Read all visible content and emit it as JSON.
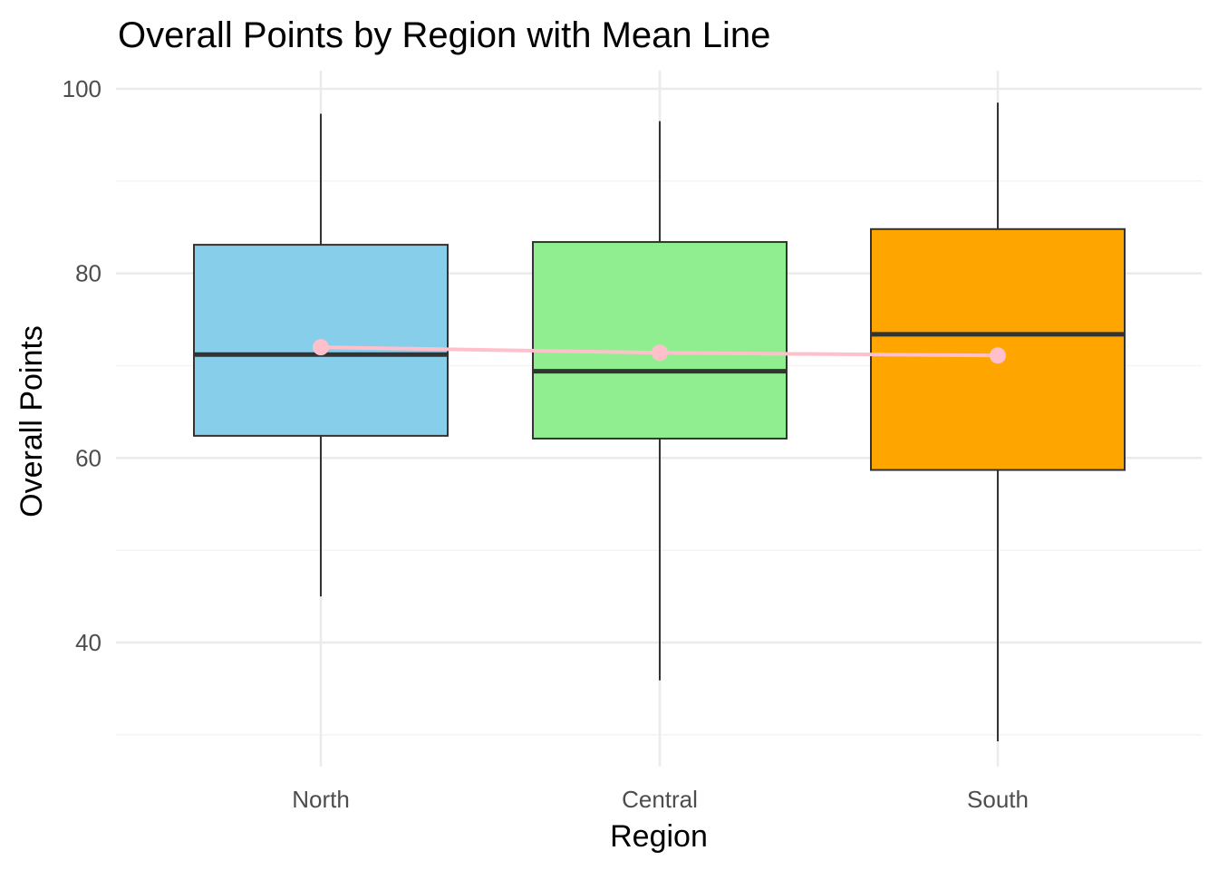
{
  "chart_data": {
    "type": "box",
    "title": "Overall Points by Region with Mean Line",
    "xlabel": "Region",
    "ylabel": "Overall Points",
    "categories": [
      "North",
      "Central",
      "South"
    ],
    "ylim": [
      26,
      102
    ],
    "y_ticks": [
      40,
      60,
      80,
      100
    ],
    "y_tick_labels": [
      "40",
      "60",
      "80",
      "100"
    ],
    "y_minor_ticks": [
      30,
      50,
      70,
      90
    ],
    "boxes": [
      {
        "category": "North",
        "min": 45,
        "q1": 62.4,
        "median": 71.2,
        "q3": 83.1,
        "max": 97.3,
        "mean": 72.0,
        "color": "#87CEEB"
      },
      {
        "category": "Central",
        "min": 35.9,
        "q1": 62.1,
        "median": 69.4,
        "q3": 83.4,
        "max": 96.5,
        "mean": 71.4,
        "color": "#90EE90"
      },
      {
        "category": "South",
        "min": 29.3,
        "q1": 58.7,
        "median": 73.4,
        "q3": 84.8,
        "max": 98.5,
        "mean": 71.1,
        "color": "#FFA500"
      }
    ],
    "mean_line_color": "#FFC0CB",
    "grid": true,
    "legend": "none"
  }
}
